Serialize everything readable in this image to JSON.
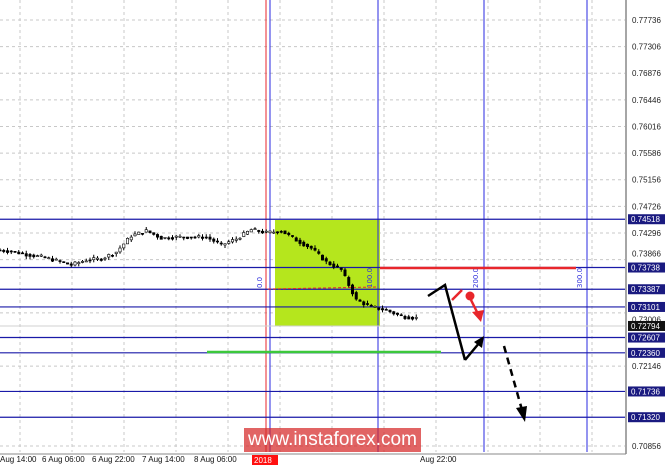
{
  "chart_data": {
    "type": "candlestick",
    "symbol_hidden": true,
    "y_ticks": [
      "0.77736",
      "0.77306",
      "0.76876",
      "0.76446",
      "0.76016",
      "0.75586",
      "0.75156",
      "0.74726",
      "0.74296",
      "0.73866",
      "0.73006",
      "0.72146",
      "0.70856"
    ],
    "ylim": [
      0.70856,
      0.77736
    ],
    "x_ticks": [
      "Aug 14:00",
      "6 Aug 06:00",
      "6 Aug 22:00",
      "7 Aug 14:00",
      "8 Aug 06:00",
      "Aug 22:00"
    ],
    "date_marker": "2018",
    "grid": true,
    "current_price": "0.72794",
    "levels": [
      {
        "label": "0.74518",
        "price": 0.74518
      },
      {
        "label": "0.73738",
        "price": 0.73738
      },
      {
        "label": "0.73387",
        "price": 0.73387
      },
      {
        "label": "0.73101",
        "price": 0.73101
      },
      {
        "label": "0.72607",
        "price": 0.72607
      },
      {
        "label": "0.72360",
        "price": 0.7236
      },
      {
        "label": "0.71736",
        "price": 0.71736
      },
      {
        "label": "0.71320",
        "price": 0.7132
      }
    ],
    "fibo_labels": [
      "0.0",
      "100.0",
      "200.0",
      "300.0"
    ],
    "closes": [
      0.74021,
      0.74,
      0.7395,
      0.7391,
      0.7385,
      0.73779,
      0.7386,
      0.7388,
      0.7399,
      0.7425,
      0.7433,
      0.74215,
      0.7423,
      0.74231,
      0.7423,
      0.74102,
      0.742,
      0.7435,
      0.743,
      0.7433,
      0.7418,
      0.7405,
      0.73827,
      0.737,
      0.73213,
      0.731,
      0.7305,
      0.7295,
      0.72922
    ],
    "colors": {
      "levels": "#1a1aa8",
      "fibo_box": "#b5e61d",
      "resistance": "#e8262b",
      "support": "#3cc83c",
      "candles": "#000000"
    }
  },
  "watermark": "www.instaforex.com"
}
